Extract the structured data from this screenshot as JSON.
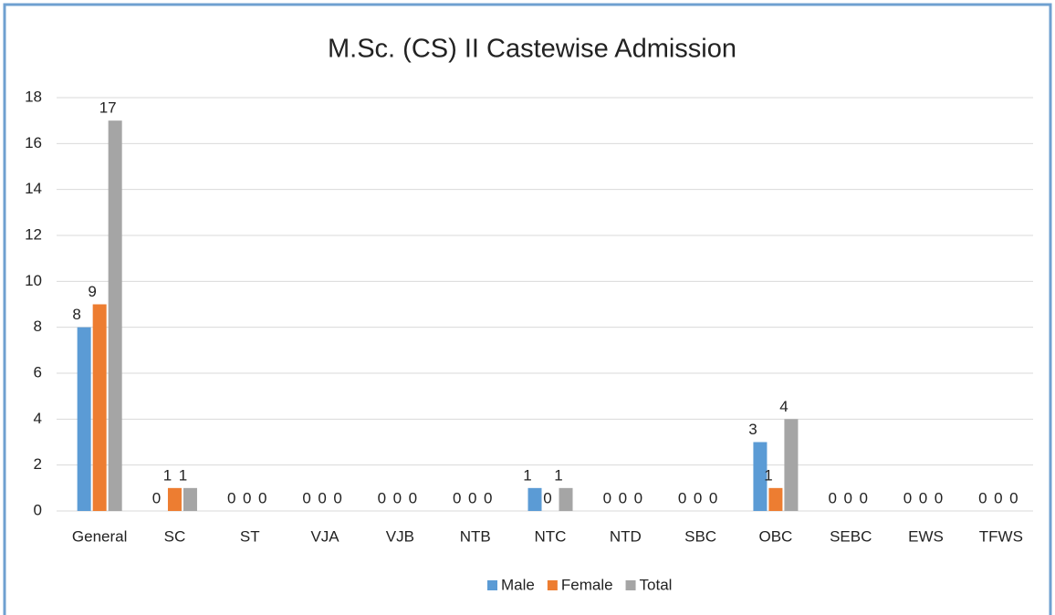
{
  "chart_data": {
    "type": "bar",
    "title": "M.Sc. (CS) II Castewise Admission",
    "categories": [
      "General",
      "SC",
      "ST",
      "VJA",
      "VJB",
      "NTB",
      "NTC",
      "NTD",
      "SBC",
      "OBC",
      "SEBC",
      "EWS",
      "TFWS"
    ],
    "series": [
      {
        "name": "Male",
        "color": "#5b9bd5",
        "values": [
          8,
          0,
          0,
          0,
          0,
          0,
          1,
          0,
          0,
          3,
          0,
          0,
          0
        ]
      },
      {
        "name": "Female",
        "color": "#ed7d31",
        "values": [
          9,
          1,
          0,
          0,
          0,
          0,
          0,
          0,
          0,
          1,
          0,
          0,
          0
        ]
      },
      {
        "name": "Total",
        "color": "#a5a5a5",
        "values": [
          17,
          1,
          0,
          0,
          0,
          0,
          1,
          0,
          0,
          4,
          0,
          0,
          0
        ]
      }
    ],
    "ylim": [
      0,
      18
    ],
    "yticks": [
      0,
      2,
      4,
      6,
      8,
      10,
      12,
      14,
      16,
      18
    ],
    "grid": true,
    "legend": "bottom"
  }
}
